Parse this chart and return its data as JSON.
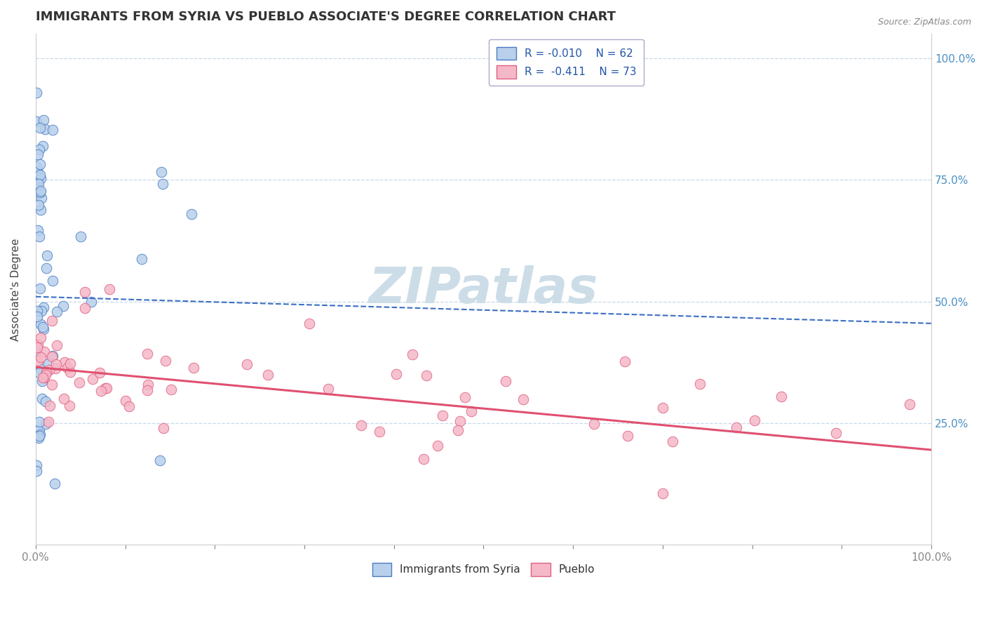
{
  "title": "IMMIGRANTS FROM SYRIA VS PUEBLO ASSOCIATE'S DEGREE CORRELATION CHART",
  "source": "Source: ZipAtlas.com",
  "ylabel": "Associate's Degree",
  "watermark": "ZIPatlas",
  "legend_r1": "R = -0.010",
  "legend_n1": "N = 62",
  "legend_r2": "R = -0.411",
  "legend_n2": "N = 73",
  "blue_fill": "#b8d0eb",
  "blue_edge": "#4a7cc4",
  "pink_fill": "#f5b8c8",
  "pink_edge": "#e06080",
  "trend_blue_color": "#3a6ec4",
  "trend_pink_color": "#e05070",
  "grid_color": "#c8d8e8",
  "right_tick_color": "#4a90c4",
  "title_color": "#333333",
  "source_color": "#888888",
  "watermark_color": "#ccdde8",
  "legend_text_color": "#2255aa"
}
